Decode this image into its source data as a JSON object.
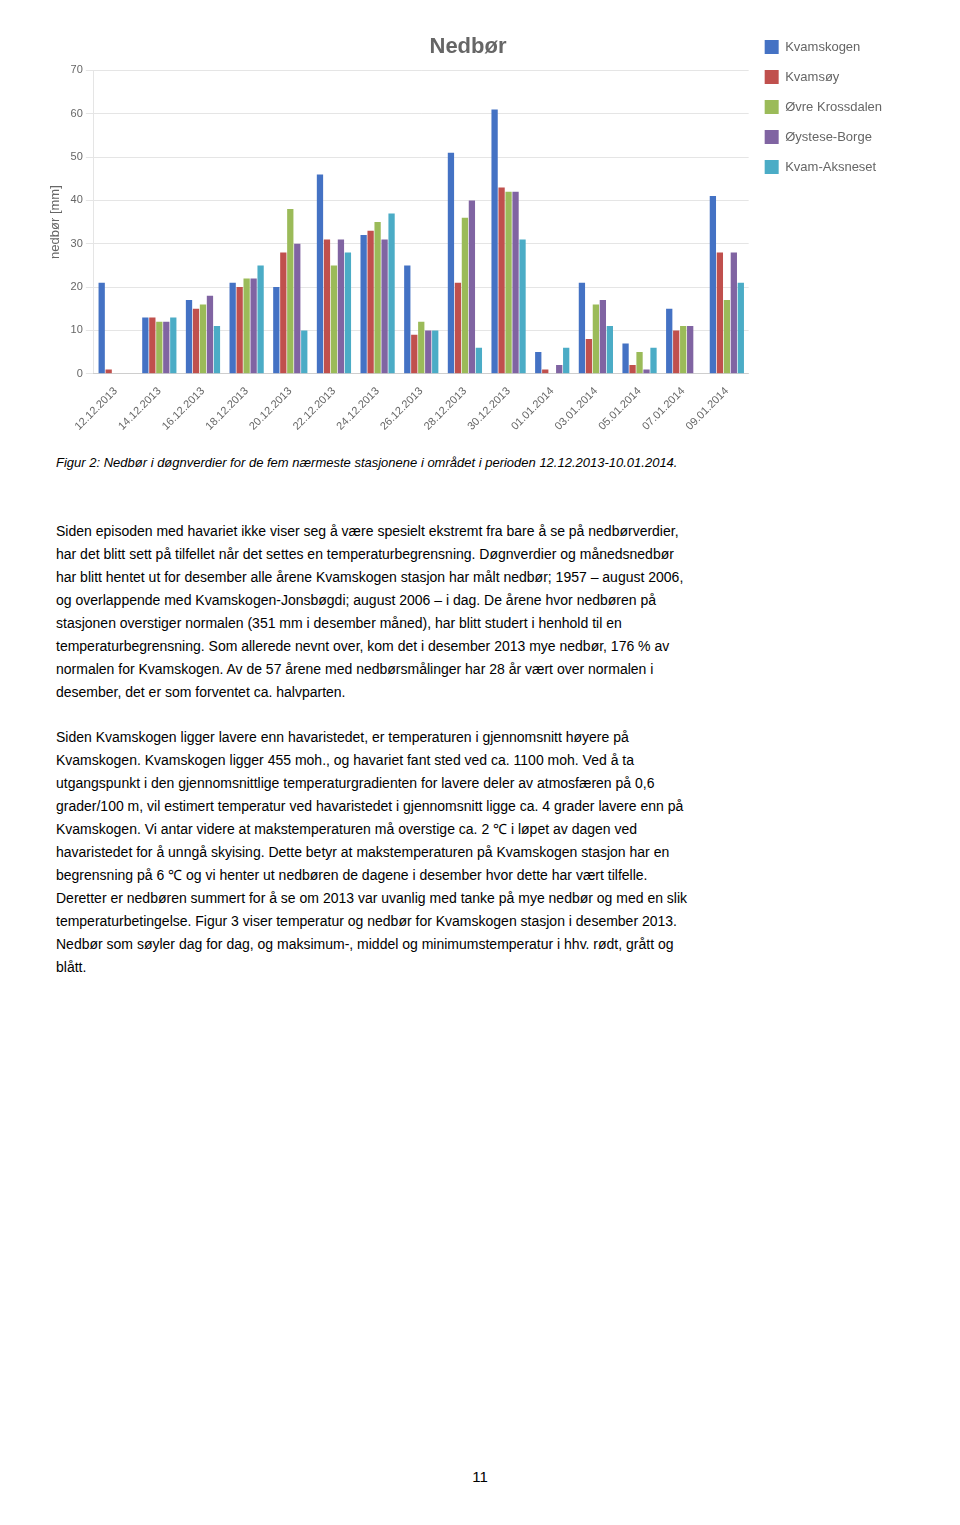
{
  "chart_data": {
    "type": "bar",
    "title": "Nedbør",
    "y_label": "nedbør [mm]",
    "categories": [
      "12.12.2013",
      "14.12.2013",
      "16.12.2013",
      "18.12.2013",
      "20.12.2013",
      "22.12.2013",
      "24.12.2013",
      "26.12.2013",
      "28.12.2013",
      "30.12.2013",
      "01.01.2014",
      "03.01.2014",
      "05.01.2014",
      "07.01.2014",
      "09.01.2014"
    ],
    "series": [
      {
        "name": "Kvamskogen",
        "color": "#4472C4",
        "values": [
          21,
          13,
          17,
          21,
          20,
          46,
          32,
          25,
          51,
          61,
          5,
          21,
          7,
          15,
          41
        ]
      },
      {
        "name": "Kvamsøy",
        "color": "#C0504D",
        "values": [
          1,
          13,
          15,
          20,
          28,
          31,
          33,
          9,
          21,
          43,
          1,
          8,
          2,
          10,
          28
        ]
      },
      {
        "name": "Øvre Krossdalen",
        "color": "#9BBB59",
        "values": [
          0,
          12,
          16,
          22,
          38,
          25,
          35,
          12,
          36,
          42,
          0,
          16,
          5,
          11,
          17
        ]
      },
      {
        "name": "Øystese-Borge",
        "color": "#8064A2",
        "values": [
          0,
          12,
          18,
          22,
          30,
          31,
          31,
          10,
          40,
          42,
          2,
          17,
          1,
          11,
          28
        ]
      },
      {
        "name": "Kvam-Aksneset",
        "color": "#4BACC6",
        "values": [
          0,
          13,
          11,
          25,
          10,
          28,
          37,
          10,
          6,
          31,
          6,
          11,
          6,
          0,
          21
        ]
      }
    ],
    "ylim": [
      0,
      70
    ],
    "yticks": [
      0,
      10,
      20,
      30,
      40,
      50,
      60,
      70
    ],
    "grid": true,
    "legend": "right"
  },
  "caption": "Figur 2: Nedbør i døgnverdier for de fem nærmeste stasjonene i området i perioden 12.12.2013-10.01.2014.",
  "paragraphs": [
    [
      "Siden episoden med havariet ikke viser seg å være spesielt ekstremt fra bare å se på nedbørverdier,",
      "har det blitt sett på tilfellet når det settes en temperaturbegrensning. Døgnverdier og månedsnedbør",
      "har blitt hentet ut for desember alle årene Kvamskogen stasjon har målt nedbør; 1957 – august 2006,",
      "og overlappende med Kvamskogen-Jonsbøgdi; august 2006 – i dag. De årene hvor nedbøren på",
      "stasjonen overstiger normalen (351 mm i desember måned), har blitt studert i henhold til en",
      "temperaturbegrensning. Som allerede nevnt over, kom det i desember 2013 mye nedbør, 176 % av",
      "normalen for Kvamskogen. Av de 57 årene med nedbørsmålinger har 28 år vært over normalen i",
      "desember, det er som forventet ca. halvparten."
    ],
    [
      "Siden Kvamskogen ligger lavere enn havaristedet, er temperaturen i gjennomsnitt høyere på",
      "Kvamskogen. Kvamskogen ligger 455 moh., og havariet fant sted ved ca. 1100 moh. Ved å ta",
      "utgangspunkt i den gjennomsnittlige temperaturgradienten for lavere deler av atmosfæren på 0,6",
      "grader/100 m, vil estimert temperatur ved havaristedet i gjennomsnitt ligge ca. 4 grader lavere enn på",
      "Kvamskogen. Vi antar videre at makstemperaturen må overstige ca. 2 ℃ i løpet av dagen ved",
      "havaristedet for å unngå skyising. Dette betyr at makstemperaturen på Kvamskogen stasjon har en",
      "begrensning på 6 ℃ og vi henter ut nedbøren de dagene i desember hvor dette har vært tilfelle.",
      "Deretter er nedbøren summert for å se om 2013 var uvanlig med tanke på mye nedbør og med en slik",
      "temperaturbetingelse. Figur 3 viser temperatur og nedbør for Kvamskogen stasjon i desember 2013.",
      "Nedbør som søyler dag for dag, og maksimum-, middel og minimumstemperatur i hhv. rødt, grått og",
      "blått."
    ]
  ],
  "page_number": "11"
}
